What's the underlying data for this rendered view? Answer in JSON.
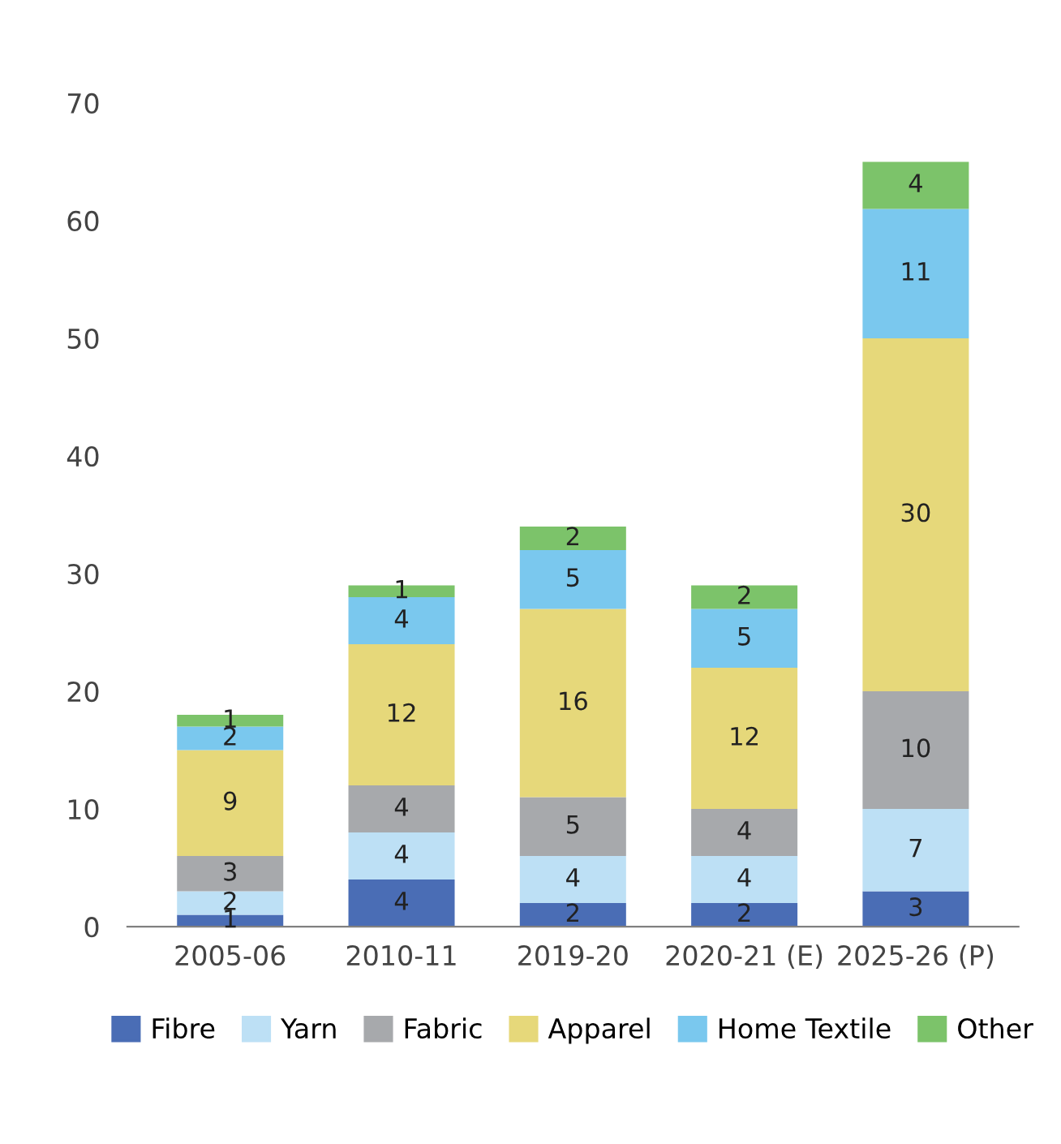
{
  "chart_data": {
    "type": "bar",
    "stacked": true,
    "data_labels": true,
    "grid": false,
    "legend": "bottom",
    "categories": [
      "2005-06",
      "2010-11",
      "2019-20",
      "2020-21 (E)",
      "2025-26 (P)"
    ],
    "ylim": [
      0,
      70
    ],
    "yticks": [
      0,
      10,
      20,
      30,
      40,
      50,
      60,
      70
    ],
    "series": [
      {
        "name": "Fibre",
        "color": "#4a6db5",
        "values": [
          1,
          4,
          2,
          2,
          3
        ]
      },
      {
        "name": "Yarn",
        "color": "#bde0f5",
        "values": [
          2,
          4,
          4,
          4,
          7
        ]
      },
      {
        "name": "Fabric",
        "color": "#a7a9ac",
        "values": [
          3,
          4,
          5,
          4,
          10
        ]
      },
      {
        "name": "Apparel",
        "color": "#e6d87a",
        "values": [
          9,
          12,
          16,
          12,
          30
        ]
      },
      {
        "name": "Home Textile",
        "color": "#7ac8ee",
        "values": [
          2,
          4,
          5,
          5,
          11
        ]
      },
      {
        "name": "Other",
        "color": "#7cc36a",
        "values": [
          1,
          1,
          2,
          2,
          4
        ]
      }
    ]
  }
}
